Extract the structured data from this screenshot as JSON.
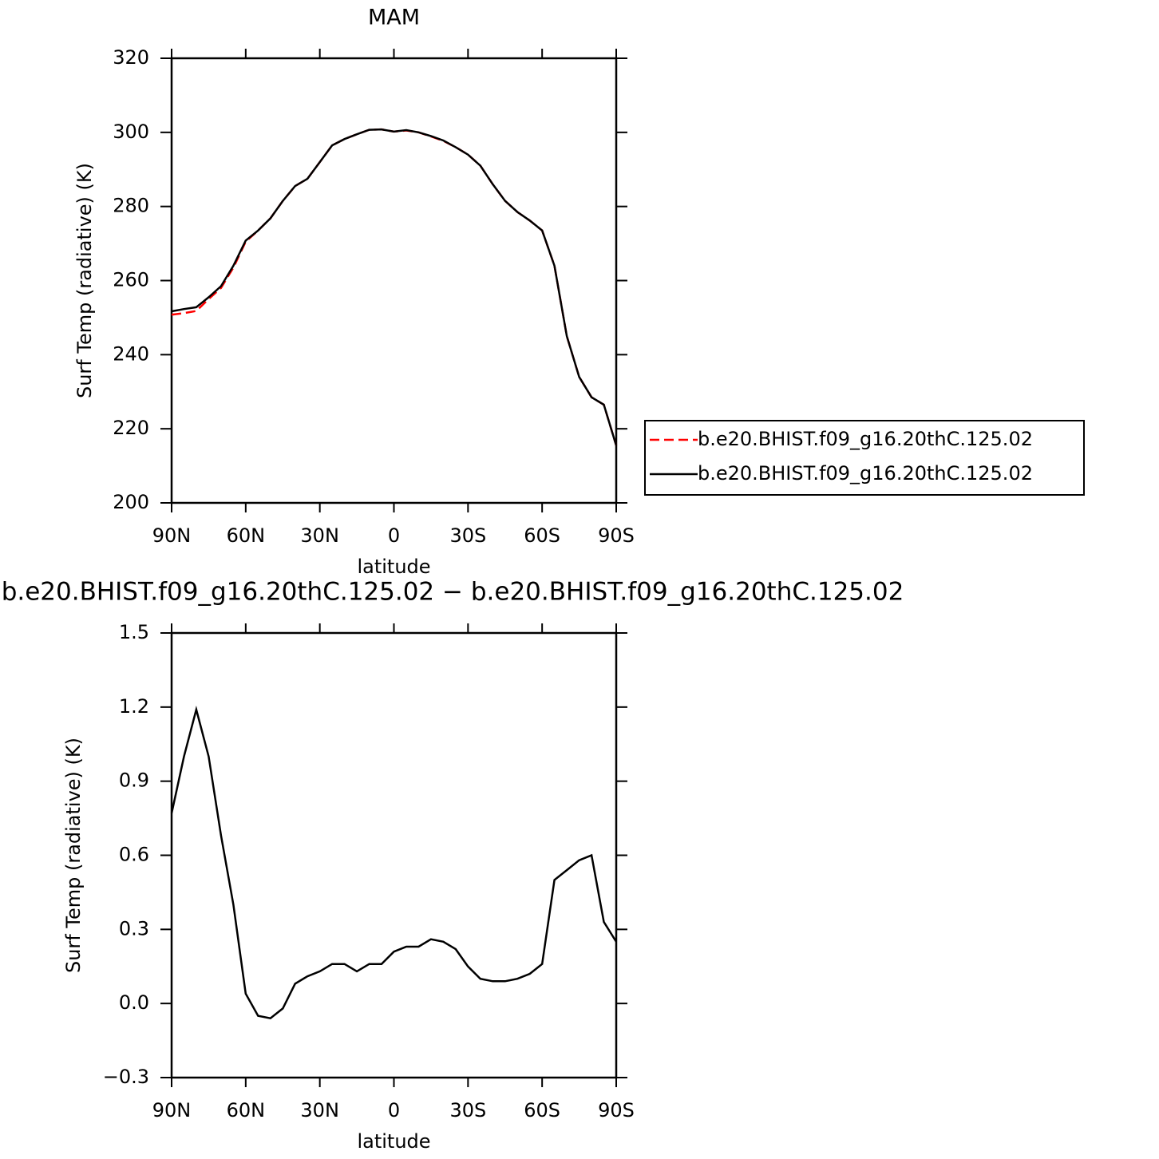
{
  "chart_data": [
    {
      "type": "line",
      "title": "MAM",
      "xlabel": "latitude",
      "ylabel": "Surf Temp (radiative) (K)",
      "x": [
        90,
        85,
        80,
        75,
        70,
        65,
        60,
        55,
        50,
        45,
        40,
        35,
        30,
        25,
        20,
        15,
        10,
        5,
        0,
        -5,
        -10,
        -15,
        -20,
        -25,
        -30,
        -35,
        -40,
        -45,
        -50,
        -55,
        -60,
        -65,
        -70,
        -75,
        -80,
        -85,
        -90
      ],
      "series": [
        {
          "name": "b.e20.BHIST.f09_g16.20thC.125.02",
          "color": "#ff0000",
          "dash": true,
          "values": [
            250.8,
            251.2,
            251.8,
            255,
            258,
            263.5,
            270.5,
            273.5,
            276.8,
            281.5,
            285.5,
            287.5,
            292,
            296.5,
            298.2,
            299.5,
            300.7,
            300.8,
            300.2,
            300.5,
            300,
            298.9,
            297.7,
            296,
            294,
            291,
            286,
            281.5,
            278.5,
            276.2,
            273.5,
            264,
            245,
            234,
            228.5,
            226.5,
            215.5
          ]
        },
        {
          "name": "b.e20.BHIST.f09_g16.20thC.125.02",
          "color": "#000000",
          "dash": false,
          "values": [
            251.7,
            252.3,
            252.8,
            255.5,
            258.5,
            264,
            270.8,
            273.5,
            276.8,
            281.5,
            285.5,
            287.5,
            292,
            296.5,
            298.2,
            299.5,
            300.7,
            300.8,
            300.2,
            300.6,
            300,
            299,
            297.8,
            296,
            294,
            291,
            286,
            281.5,
            278.5,
            276.2,
            273.5,
            264,
            245,
            234,
            228.5,
            226.5,
            215.5
          ]
        }
      ],
      "xlim": [
        90,
        -90
      ],
      "xticks": [
        {
          "value": 90,
          "label": "90N"
        },
        {
          "value": 60,
          "label": "60N"
        },
        {
          "value": 30,
          "label": "30N"
        },
        0,
        {
          "value": -30,
          "label": "30S"
        },
        {
          "value": -60,
          "label": "60S"
        },
        {
          "value": -90,
          "label": "90S"
        }
      ],
      "ylim": [
        200,
        320
      ],
      "yticks": [
        200,
        220,
        240,
        260,
        280,
        300,
        320
      ],
      "legend": "right"
    },
    {
      "type": "line",
      "title": "b.e20.BHIST.f09_g16.20thC.125.02 − b.e20.BHIST.f09_g16.20thC.125.02",
      "xlabel": "latitude",
      "ylabel": "Surf Temp (radiative) (K)",
      "x": [
        90,
        85,
        80,
        75,
        70,
        65,
        60,
        55,
        50,
        45,
        40,
        35,
        30,
        25,
        20,
        15,
        10,
        5,
        0,
        -5,
        -10,
        -15,
        -20,
        -25,
        -30,
        -35,
        -40,
        -45,
        -50,
        -55,
        -60,
        -65,
        -70,
        -75,
        -80,
        -85,
        -90
      ],
      "color": "#000000",
      "values": [
        0.77,
        1.0,
        1.19,
        1.0,
        0.68,
        0.4,
        0.04,
        -0.05,
        -0.06,
        -0.02,
        0.08,
        0.11,
        0.13,
        0.16,
        0.16,
        0.13,
        0.16,
        0.16,
        0.21,
        0.23,
        0.23,
        0.26,
        0.25,
        0.22,
        0.15,
        0.1,
        0.09,
        0.09,
        0.1,
        0.12,
        0.16,
        0.5,
        0.54,
        0.58,
        0.6,
        0.33,
        0.25
      ],
      "xlim": [
        90,
        -90
      ],
      "xticks": [
        {
          "value": 90,
          "label": "90N"
        },
        {
          "value": 60,
          "label": "60N"
        },
        {
          "value": 30,
          "label": "30N"
        },
        0,
        {
          "value": -30,
          "label": "30S"
        },
        {
          "value": -60,
          "label": "60S"
        },
        {
          "value": -90,
          "label": "90S"
        }
      ],
      "ylim": [
        -0.3,
        1.5
      ],
      "yticks": [
        {
          "value": -0.3,
          "label": "−0.3"
        },
        {
          "value": 0,
          "label": "0.0"
        },
        0.3,
        0.6,
        0.9,
        1.2,
        1.5
      ]
    }
  ]
}
